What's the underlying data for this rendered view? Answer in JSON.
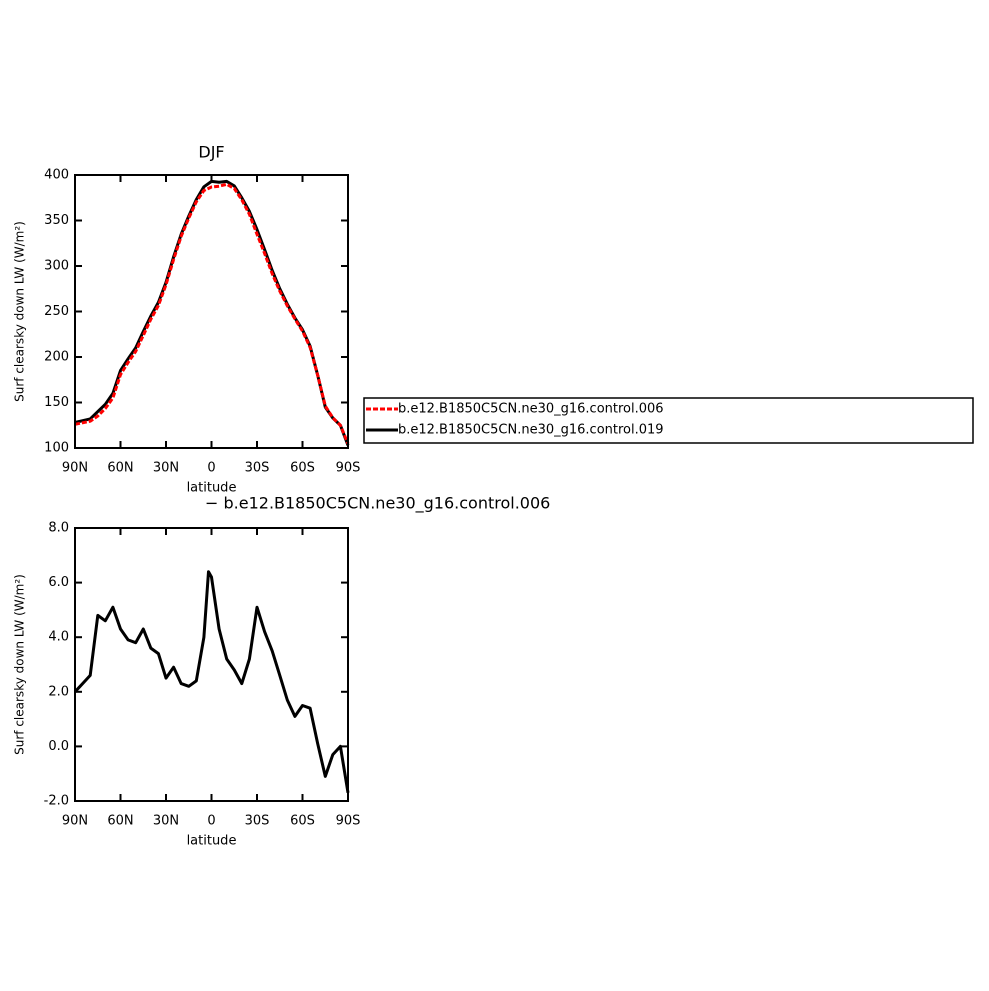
{
  "chart_data": [
    {
      "type": "line",
      "title": "DJF",
      "xlabel": "latitude",
      "ylabel": "Surf clearsky down LW (W/m²)",
      "x": [
        90,
        85,
        80,
        75,
        70,
        65,
        60,
        55,
        50,
        45,
        40,
        35,
        30,
        25,
        20,
        15,
        10,
        5,
        0,
        -5,
        -10,
        -15,
        -20,
        -25,
        -30,
        -35,
        -40,
        -45,
        -50,
        -55,
        -60,
        -65,
        -70,
        -75,
        -80,
        -85,
        -90
      ],
      "series": [
        {
          "name": "b.e12.B1850C5CN.ne30_g16.control.006",
          "color": "#ff0000",
          "dashed": true,
          "values": [
            126.0,
            127.7,
            129.4,
            135.2,
            143.4,
            154.9,
            180.7,
            194.1,
            206.2,
            223.7,
            241.4,
            256.6,
            279.5,
            307.1,
            332.7,
            352.8,
            370.6,
            383.0,
            386.8,
            387.7,
            389.8,
            385.2,
            372.7,
            356.8,
            334.9,
            313.8,
            291.5,
            272.4,
            256.3,
            241.9,
            228.5,
            210.6,
            179.9,
            146.1,
            133.3,
            125.0,
            104.7
          ]
        },
        {
          "name": "b.e12.B1850C5CN.ne30_g16.control.019",
          "color": "#000000",
          "dashed": false,
          "values": [
            128,
            130,
            132,
            140,
            148,
            160,
            185,
            198,
            210,
            228,
            245,
            260,
            282,
            310,
            335,
            355,
            373,
            387,
            393,
            392,
            393,
            388,
            375,
            360,
            340,
            318,
            295,
            275,
            258,
            243,
            230,
            212,
            180,
            145,
            133,
            125,
            103
          ]
        }
      ],
      "xlim": [
        90,
        -90
      ],
      "xticks": [
        {
          "value": 90,
          "label": "90N"
        },
        {
          "value": 60,
          "label": "60N"
        },
        {
          "value": 30,
          "label": "30N"
        },
        0,
        {
          "value": -30,
          "label": "30S"
        },
        {
          "value": -60,
          "label": "60S"
        },
        {
          "value": -90,
          "label": "90S"
        }
      ],
      "ylim": [
        100,
        400
      ],
      "yticks": [
        100,
        150,
        200,
        250,
        300,
        350,
        400
      ],
      "legend": "right"
    },
    {
      "type": "line",
      "title": "− b.e12.B1850C5CN.ne30_g16.control.006",
      "xlabel": "latitude",
      "ylabel": "Surf clearsky down LW (W/m²)",
      "x": [
        90,
        85,
        80,
        75,
        70,
        65,
        60,
        55,
        50,
        45,
        40,
        35,
        30,
        25,
        20,
        15,
        10,
        5,
        2,
        0,
        -5,
        -10,
        -15,
        -20,
        -25,
        -30,
        -35,
        -40,
        -45,
        -50,
        -55,
        -60,
        -65,
        -70,
        -75,
        -80,
        -85,
        -90
      ],
      "series": [
        {
          "color": "#000000",
          "dashed": false,
          "values": [
            2.0,
            2.3,
            2.6,
            4.8,
            4.6,
            5.1,
            4.3,
            3.9,
            3.8,
            4.3,
            3.6,
            3.4,
            2.5,
            2.9,
            2.3,
            2.2,
            2.4,
            4.0,
            6.4,
            6.2,
            4.3,
            3.2,
            2.8,
            2.3,
            3.2,
            5.1,
            4.2,
            3.5,
            2.6,
            1.7,
            1.1,
            1.5,
            1.4,
            0.1,
            -1.1,
            -0.3,
            0.0,
            -1.7
          ]
        }
      ],
      "xlim": [
        90,
        -90
      ],
      "xticks": [
        {
          "value": 90,
          "label": "90N"
        },
        {
          "value": 60,
          "label": "60N"
        },
        {
          "value": 30,
          "label": "30N"
        },
        0,
        {
          "value": -30,
          "label": "30S"
        },
        {
          "value": -60,
          "label": "60S"
        },
        {
          "value": -90,
          "label": "90S"
        }
      ],
      "ylim": [
        -2,
        8
      ],
      "yticks": [
        {
          "value": -2,
          "label": "-2.0"
        },
        {
          "value": 0,
          "label": "0.0"
        },
        {
          "value": 2,
          "label": "2.0"
        },
        {
          "value": 4,
          "label": "4.0"
        },
        {
          "value": 6,
          "label": "6.0"
        },
        {
          "value": 8,
          "label": "8.0"
        }
      ]
    }
  ]
}
